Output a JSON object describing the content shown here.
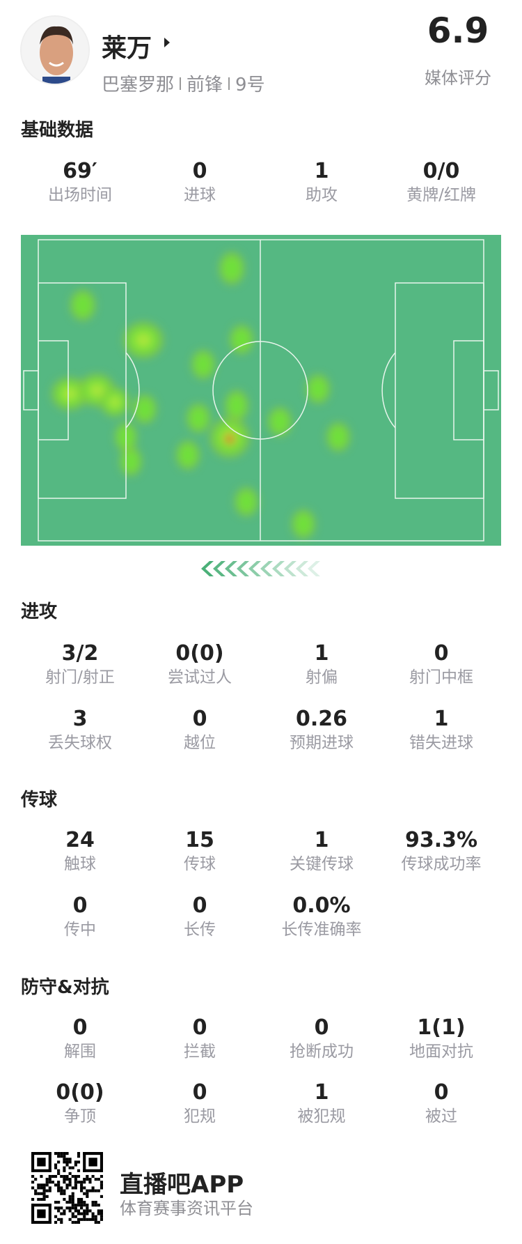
{
  "player": {
    "name": "莱万",
    "club": "巴塞罗那",
    "position": "前锋",
    "number": "9号",
    "rating": "6.9",
    "rating_label": "媒体评分"
  },
  "sections": [
    {
      "title": "基础数据",
      "stats": [
        {
          "value": "69′",
          "label": "出场时间"
        },
        {
          "value": "0",
          "label": "进球"
        },
        {
          "value": "1",
          "label": "助攻"
        },
        {
          "value": "0/0",
          "label": "黄牌/红牌"
        }
      ]
    },
    {
      "title": "进攻",
      "stats": [
        {
          "value": "3/2",
          "label": "射门/射正"
        },
        {
          "value": "0(0)",
          "label": "尝试过人"
        },
        {
          "value": "1",
          "label": "射偏"
        },
        {
          "value": "0",
          "label": "射门中框"
        },
        {
          "value": "3",
          "label": "丢失球权"
        },
        {
          "value": "0",
          "label": "越位"
        },
        {
          "value": "0.26",
          "label": "预期进球"
        },
        {
          "value": "1",
          "label": "错失进球"
        }
      ]
    },
    {
      "title": "传球",
      "stats": [
        {
          "value": "24",
          "label": "触球"
        },
        {
          "value": "15",
          "label": "传球"
        },
        {
          "value": "1",
          "label": "关键传球"
        },
        {
          "value": "93.3%",
          "label": "传球成功率"
        },
        {
          "value": "0",
          "label": "传中"
        },
        {
          "value": "0",
          "label": "长传"
        },
        {
          "value": "0.0%",
          "label": "长传准确率"
        }
      ]
    },
    {
      "title": "防守&对抗",
      "stats": [
        {
          "value": "0",
          "label": "解围"
        },
        {
          "value": "0",
          "label": "拦截"
        },
        {
          "value": "0",
          "label": "抢断成功"
        },
        {
          "value": "1(1)",
          "label": "地面对抗"
        },
        {
          "value": "0(0)",
          "label": "争顶"
        },
        {
          "value": "0",
          "label": "犯规"
        },
        {
          "value": "1",
          "label": "被犯规"
        },
        {
          "value": "0",
          "label": "被过"
        }
      ]
    }
  ],
  "heatmap": {
    "pitch_color": "#55b882",
    "line_color": "#e8f5ec",
    "attack_direction": "left"
  },
  "footer": {
    "brand": "直播吧APP",
    "tagline": "体育赛事资讯平台"
  }
}
